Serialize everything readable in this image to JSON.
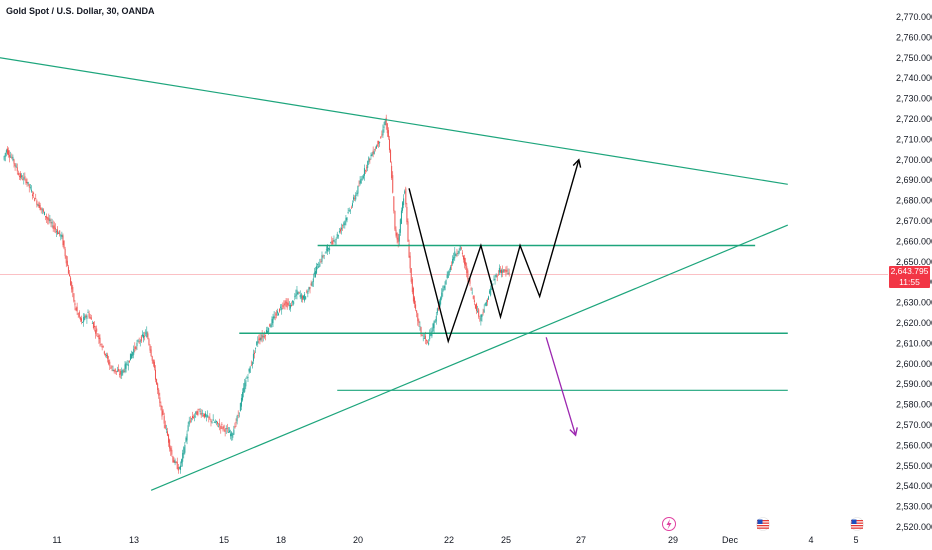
{
  "header": {
    "title": "Gold Spot / U.S. Dollar, 30, OANDA"
  },
  "price_tag": {
    "price": "2,643.795",
    "countdown": "11:55"
  },
  "colors": {
    "up": "#26a69a",
    "down": "#ef5350",
    "trendline": "#1da57c",
    "projection_up": "#000000",
    "projection_down": "#9c27b0",
    "price_line": "#f23645"
  },
  "icons": [
    "lightning-icon",
    "us-flag-icon",
    "us-flag-icon"
  ],
  "chart_data": {
    "type": "candlestick",
    "title": "Gold Spot / U.S. Dollar, 30, OANDA",
    "y_axis": {
      "min": 2520,
      "max": 2770,
      "step": 10,
      "tick_labels": [
        "2,770.000",
        "2,760.000",
        "2,750.000",
        "2,740.000",
        "2,730.000",
        "2,720.000",
        "2,710.000",
        "2,700.000",
        "2,690.000",
        "2,680.000",
        "2,670.000",
        "2,660.000",
        "2,650.000",
        "2,640.000",
        "2,630.000",
        "2,620.000",
        "2,610.000",
        "2,600.000",
        "2,590.000",
        "2,580.000",
        "2,570.000",
        "2,560.000",
        "2,550.000",
        "2,540.000",
        "2,530.000",
        "2,520.000"
      ]
    },
    "x_axis": {
      "tick_labels": [
        "11",
        "13",
        "15",
        "18",
        "20",
        "22",
        "25",
        "27",
        "29",
        "Dec",
        "4",
        "5"
      ]
    },
    "price_path": [
      [
        0,
        2700
      ],
      [
        1,
        2705
      ],
      [
        3,
        2700
      ],
      [
        5,
        2692
      ],
      [
        7,
        2690
      ],
      [
        10,
        2680
      ],
      [
        14,
        2670
      ],
      [
        18,
        2662
      ],
      [
        20,
        2645
      ],
      [
        22,
        2628
      ],
      [
        24,
        2620
      ],
      [
        26,
        2625
      ],
      [
        30,
        2610
      ],
      [
        33,
        2598
      ],
      [
        36,
        2595
      ],
      [
        38,
        2600
      ],
      [
        40,
        2607
      ],
      [
        42,
        2612
      ],
      [
        44,
        2615
      ],
      [
        46,
        2600
      ],
      [
        48,
        2580
      ],
      [
        50,
        2567
      ],
      [
        52,
        2553
      ],
      [
        54,
        2548
      ],
      [
        55,
        2555
      ],
      [
        57,
        2572
      ],
      [
        60,
        2577
      ],
      [
        63,
        2573
      ],
      [
        66,
        2570
      ],
      [
        68,
        2568
      ],
      [
        70,
        2565
      ],
      [
        72,
        2575
      ],
      [
        74,
        2590
      ],
      [
        76,
        2600
      ],
      [
        78,
        2612
      ],
      [
        80,
        2614
      ],
      [
        82,
        2620
      ],
      [
        84,
        2625
      ],
      [
        86,
        2630
      ],
      [
        88,
        2628
      ],
      [
        90,
        2635
      ],
      [
        92,
        2632
      ],
      [
        94,
        2638
      ],
      [
        96,
        2647
      ],
      [
        98,
        2653
      ],
      [
        100,
        2658
      ],
      [
        102,
        2662
      ],
      [
        104,
        2668
      ],
      [
        106,
        2675
      ],
      [
        108,
        2683
      ],
      [
        110,
        2692
      ],
      [
        112,
        2700
      ],
      [
        114,
        2706
      ],
      [
        116,
        2712
      ],
      [
        117,
        2720
      ],
      [
        118,
        2710
      ],
      [
        119,
        2692
      ],
      [
        120,
        2665
      ],
      [
        121,
        2660
      ],
      [
        122,
        2675
      ],
      [
        123,
        2686
      ],
      [
        124,
        2660
      ],
      [
        125,
        2640
      ],
      [
        126,
        2628
      ],
      [
        128,
        2615
      ],
      [
        130,
        2610
      ],
      [
        132,
        2620
      ],
      [
        134,
        2632
      ],
      [
        136,
        2643
      ],
      [
        138,
        2653
      ],
      [
        140,
        2657
      ],
      [
        142,
        2645
      ],
      [
        144,
        2632
      ],
      [
        146,
        2622
      ],
      [
        148,
        2630
      ],
      [
        150,
        2640
      ],
      [
        152,
        2646
      ],
      [
        154,
        2645
      ],
      [
        155,
        2644
      ]
    ],
    "annotations": {
      "upper_trendline": [
        [
          -40,
          2760
        ],
        [
          240,
          2688
        ]
      ],
      "lower_trendline": [
        [
          45,
          2538
        ],
        [
          240,
          2668
        ]
      ],
      "resistance_line": [
        [
          96,
          2658
        ],
        [
          230,
          2658
        ]
      ],
      "support_line": [
        [
          72,
          2615
        ],
        [
          240,
          2615
        ]
      ],
      "lower_support_line": [
        [
          102,
          2587
        ],
        [
          240,
          2587
        ]
      ],
      "zigzag": [
        [
          124,
          2686
        ],
        [
          136,
          2611
        ],
        [
          146,
          2658
        ],
        [
          152,
          2623
        ],
        [
          158,
          2658
        ],
        [
          164,
          2633
        ],
        [
          176,
          2700
        ]
      ],
      "bear_arrow": [
        [
          166,
          2613
        ],
        [
          175,
          2565
        ]
      ]
    }
  }
}
